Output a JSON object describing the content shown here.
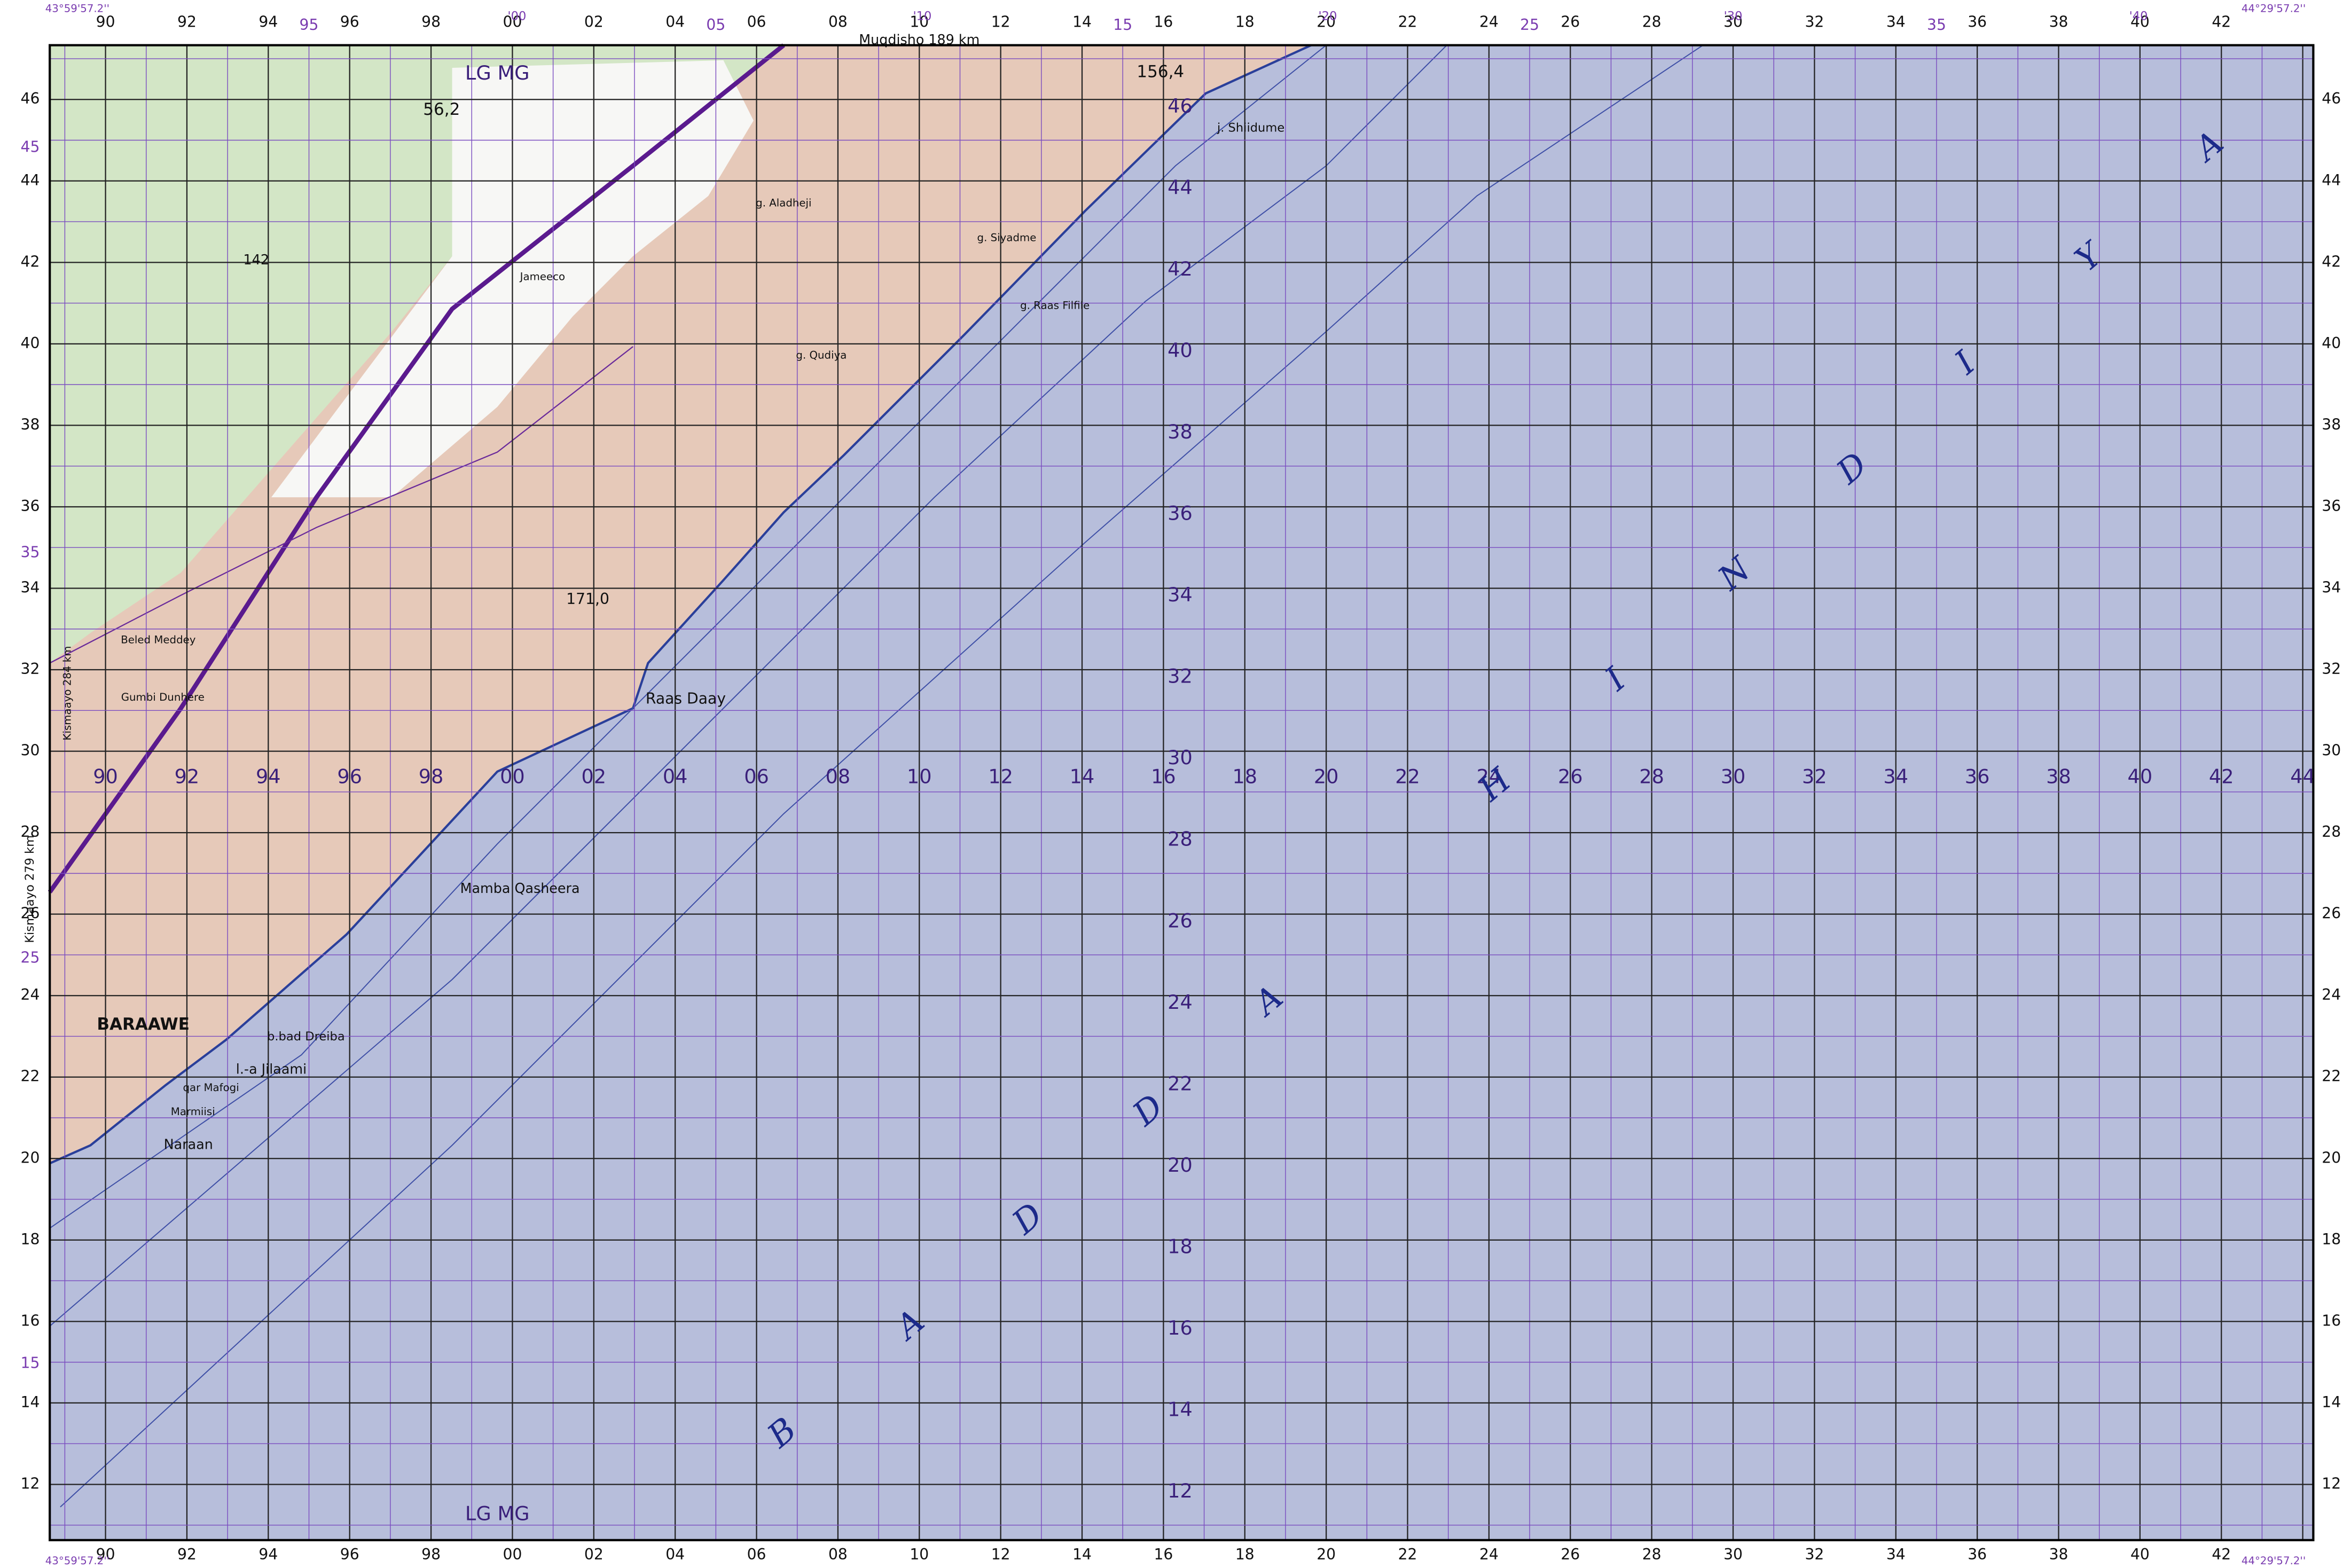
{
  "map": {
    "top_grid": [
      "90",
      "92",
      "94",
      "96",
      "98",
      "00",
      "02",
      "04",
      "06",
      "08",
      "10",
      "12",
      "14",
      "16",
      "18",
      "20",
      "22",
      "24",
      "26",
      "28",
      "30",
      "32",
      "34",
      "36",
      "38",
      "40",
      "42"
    ],
    "bottom_grid": [
      "90",
      "92",
      "94",
      "96",
      "98",
      "00",
      "02",
      "04",
      "06",
      "08",
      "10",
      "12",
      "14",
      "16",
      "18",
      "20",
      "22",
      "24",
      "26",
      "28",
      "30",
      "32",
      "34",
      "36",
      "38",
      "40",
      "42"
    ],
    "left_grid": [
      "46",
      "44",
      "42",
      "40",
      "38",
      "36",
      "34",
      "32",
      "30",
      "28",
      "26",
      "24",
      "22",
      "20",
      "18",
      "16",
      "14",
      "12"
    ],
    "right_grid": [
      "46",
      "44",
      "42",
      "40",
      "38",
      "36",
      "34",
      "32",
      "30",
      "28",
      "26",
      "24",
      "22",
      "20",
      "18",
      "16",
      "14",
      "12"
    ],
    "mid_row": [
      "90",
      "92",
      "94",
      "96",
      "98",
      "00",
      "02",
      "04",
      "06",
      "08",
      "10",
      "12",
      "14",
      "16",
      "18",
      "20",
      "22",
      "24",
      "26",
      "28",
      "30",
      "32",
      "34",
      "36",
      "38",
      "40",
      "42",
      "44"
    ],
    "mid_column": [
      "46",
      "44",
      "42",
      "40",
      "38",
      "36",
      "34",
      "32",
      "30",
      "28",
      "26",
      "24",
      "22",
      "20",
      "18",
      "16",
      "14",
      "12"
    ],
    "margin_top": [
      "95",
      "05",
      "15",
      "25",
      "35"
    ],
    "margin_minutes": [
      "'00",
      "'10",
      "'20",
      "'30",
      "'40"
    ],
    "margin_left": [
      "45",
      "35",
      "25",
      "15"
    ],
    "sheet_code": [
      "LG MG",
      "LG MG"
    ],
    "road_labels": [
      "Muqdisho 189 km",
      "Kismaayo 279 km",
      "Kismaayo 284 km"
    ],
    "corners": [
      "43°59'57.2''",
      "44°29'57.2''",
      "43°59'57.2''",
      "44°29'57.2''"
    ],
    "sea_name": [
      "B",
      "A",
      "D",
      "D",
      "A",
      "H",
      "I",
      "N",
      "D",
      "I",
      "Y",
      "A"
    ],
    "places": [
      "BARAAWE",
      "Naraan",
      "b.bad Dreiba",
      "l.-a Jilaami",
      "qar Mafogi",
      "Marmiisi",
      "Raas Daay",
      "Mamba Qasheera",
      "j. Shiidume",
      "g. Raas Filfile",
      "Beled Meddey",
      "Jameeco",
      "g. Siyadme",
      "g. Aladheji",
      "g. Qudiya",
      "Gumbi Dunhere"
    ],
    "heights": [
      "156,4",
      "56,2",
      "171,0",
      "142"
    ]
  }
}
